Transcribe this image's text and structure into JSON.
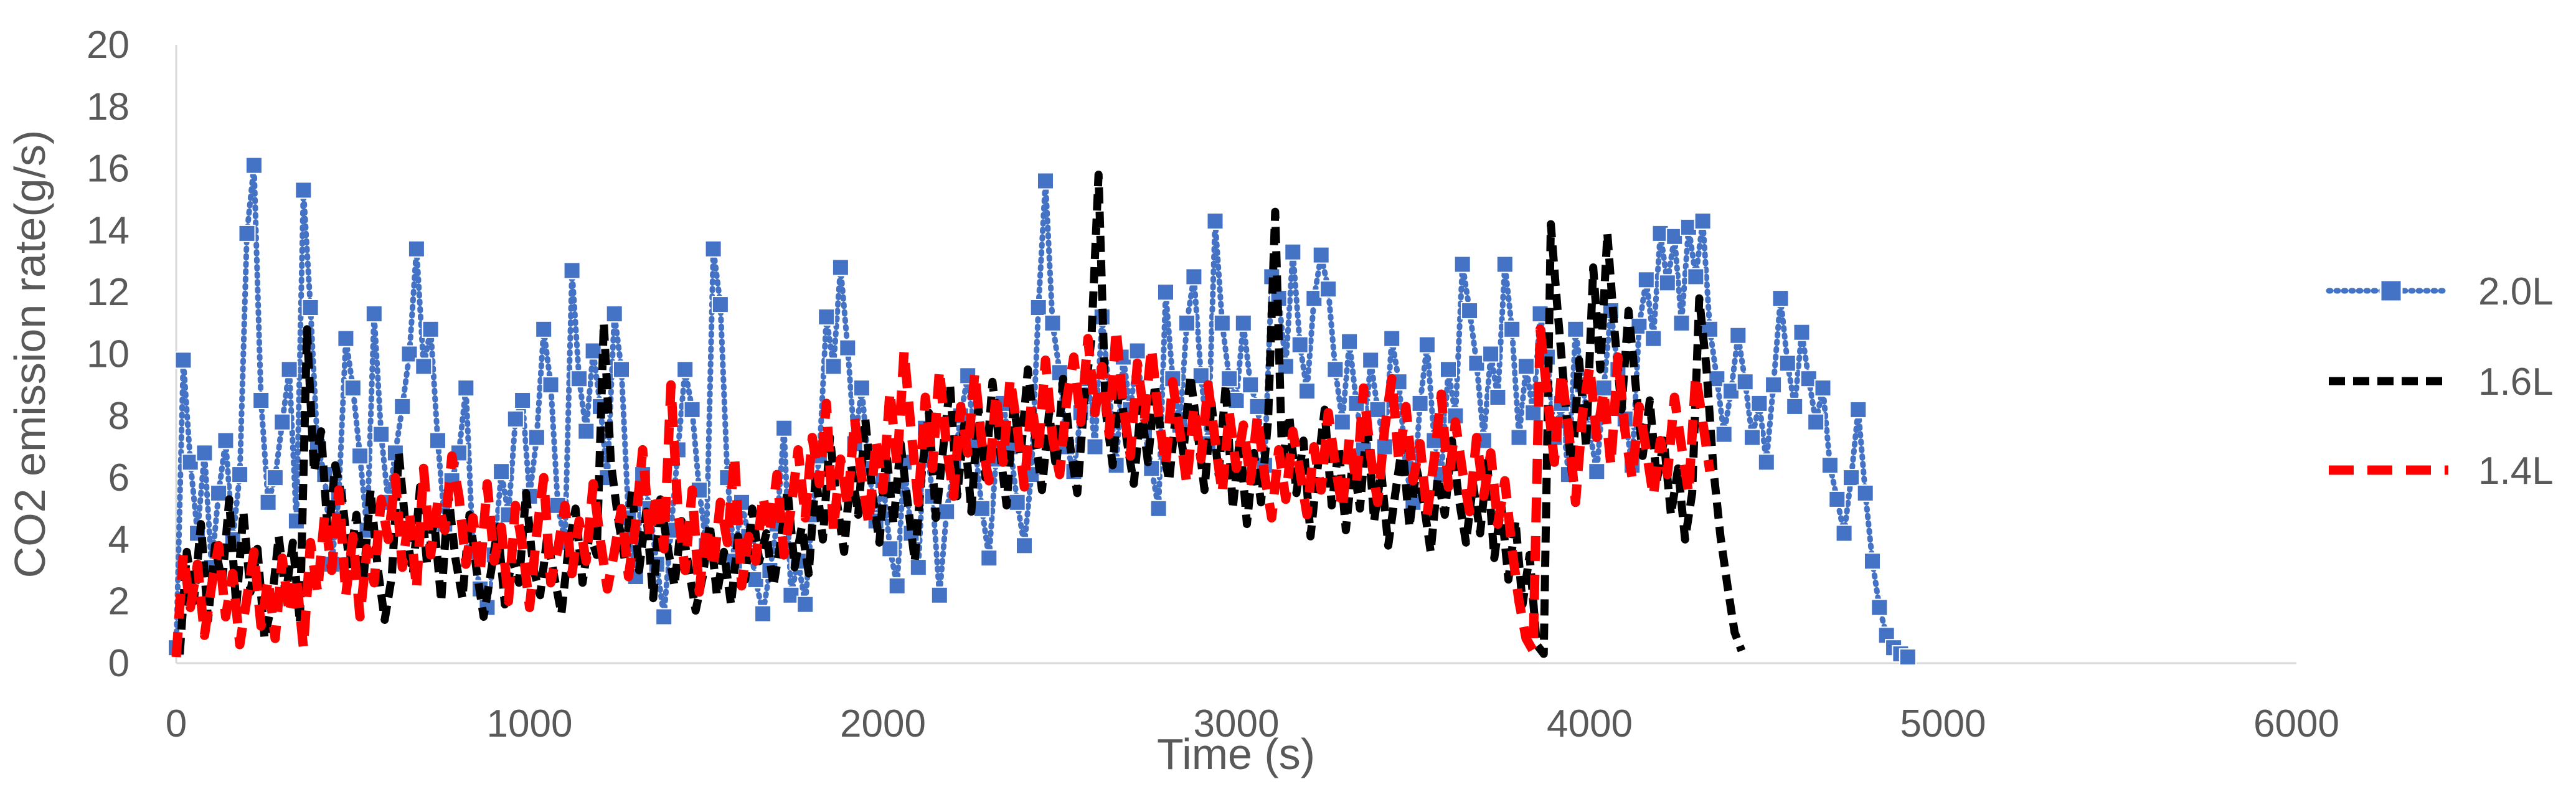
{
  "chart_data": {
    "type": "line",
    "title": "",
    "xlabel": "Time (s)",
    "ylabel": "CO2 emission rate(g/s)",
    "xlim": [
      0,
      6000
    ],
    "ylim": [
      0,
      20
    ],
    "x_ticks": [
      "0",
      "1000",
      "2000",
      "3000",
      "4000",
      "5000",
      "6000"
    ],
    "y_ticks": [
      "0",
      "2",
      "4",
      "6",
      "8",
      "10",
      "12",
      "14",
      "16",
      "18",
      "20"
    ],
    "grid": false,
    "legend_position": "right",
    "sample_interval_s": 20,
    "series": [
      {
        "name": "2.0L",
        "color": "#4472C4",
        "style": "dotted-square-marker",
        "x_start": 0,
        "values": [
          0.5,
          9.8,
          6.5,
          4.2,
          6.8,
          3.1,
          5.5,
          7.2,
          4.0,
          6.1,
          13.9,
          16.1,
          8.5,
          5.2,
          6.0,
          7.8,
          9.5,
          4.6,
          15.3,
          11.5,
          7.0,
          6.1,
          3.2,
          5.4,
          10.5,
          8.9,
          6.7,
          4.3,
          11.3,
          7.4,
          5.2,
          6.8,
          8.3,
          10.0,
          13.4,
          9.6,
          10.8,
          7.2,
          4.5,
          5.9,
          6.8,
          8.9,
          3.6,
          2.4,
          1.8,
          3.5,
          6.2,
          4.8,
          7.9,
          8.5,
          5.4,
          7.3,
          10.8,
          9.0,
          5.1,
          3.9,
          12.7,
          9.2,
          7.5,
          10.1,
          8.3,
          6.0,
          11.3,
          9.5,
          4.7,
          2.8,
          6.1,
          5.0,
          3.2,
          1.5,
          4.3,
          6.9,
          9.5,
          8.2,
          5.6,
          3.8,
          13.4,
          11.6,
          6.0,
          3.3,
          5.2,
          4.1,
          2.7,
          1.6,
          3.0,
          4.5,
          7.6,
          2.2,
          3.3,
          1.9,
          4.8,
          6.7,
          11.2,
          9.6,
          12.8,
          10.2,
          7.1,
          8.9,
          6.3,
          4.6,
          5.9,
          3.7,
          2.5,
          6.5,
          4.2,
          3.1,
          7.6,
          5.4,
          2.2,
          4.9,
          6.3,
          8.0,
          9.3,
          7.1,
          5.0,
          3.4,
          6.6,
          8.4,
          7.0,
          5.2,
          3.8,
          6.1,
          11.5,
          15.6,
          11.0,
          9.4,
          7.0,
          6.2,
          8.1,
          9.2,
          7.0,
          11.2,
          8.8,
          6.4,
          9.9,
          8.2,
          10.1,
          7.5,
          6.3,
          5.0,
          12.0,
          9.2,
          7.7,
          11.0,
          12.5,
          9.3,
          7.1,
          14.3,
          11.0,
          9.2,
          8.5,
          11.0,
          9.0,
          8.3,
          6.4,
          12.5,
          11.8,
          9.6,
          13.3,
          10.3,
          8.8,
          11.8,
          13.2,
          12.1,
          9.5,
          7.8,
          10.4,
          8.4,
          6.9,
          9.8,
          8.2,
          7.0,
          10.5,
          9.1,
          6.3,
          5.2,
          8.4,
          10.3,
          7.2,
          6.1,
          9.5,
          8.0,
          12.9,
          11.4,
          9.7,
          7.2,
          10.0,
          8.6,
          12.9,
          10.8,
          7.3,
          9.6,
          8.1,
          11.3,
          9.9,
          7.3,
          8.4,
          6.1,
          10.8,
          9.0,
          7.5,
          6.2,
          8.9,
          11.4,
          9.5,
          7.9,
          6.4,
          10.9,
          12.4,
          10.5,
          13.9,
          12.3,
          13.8,
          11.0,
          14.1,
          12.5,
          14.3,
          10.8,
          9.2,
          7.4,
          8.8,
          10.6,
          9.1,
          7.3,
          8.4,
          6.5,
          9.0,
          11.8,
          9.7,
          8.3,
          10.7,
          9.2,
          7.8,
          8.9,
          6.4,
          5.3,
          4.2,
          6.0,
          8.2,
          5.5,
          3.3,
          1.8,
          0.9,
          0.5,
          0.3,
          0.2
        ]
      },
      {
        "name": "1.6L",
        "color": "#000000",
        "style": "dashed",
        "x_start": 10,
        "values": [
          0.3,
          3.6,
          2.0,
          4.5,
          1.4,
          3.8,
          2.6,
          5.3,
          1.8,
          4.9,
          2.3,
          3.7,
          0.8,
          1.9,
          4.1,
          2.2,
          3.9,
          1.3,
          10.8,
          6.2,
          7.5,
          4.0,
          6.4,
          5.3,
          3.2,
          4.8,
          2.7,
          5.6,
          3.1,
          1.4,
          2.8,
          6.8,
          4.3,
          2.9,
          5.7,
          3.2,
          4.6,
          2.0,
          5.5,
          3.4,
          2.1,
          4.8,
          3.0,
          1.5,
          2.9,
          4.4,
          1.9,
          3.4,
          2.6,
          5.5,
          3.1,
          2.2,
          4.1,
          2.8,
          1.6,
          3.7,
          5.0,
          2.6,
          4.2,
          3.5,
          11.0,
          6.5,
          4.7,
          3.3,
          5.6,
          3.0,
          4.9,
          2.1,
          5.3,
          3.8,
          2.5,
          4.6,
          3.1,
          1.7,
          2.8,
          4.5,
          2.2,
          3.6,
          1.9,
          4.1,
          2.7,
          5.0,
          3.3,
          4.2,
          2.5,
          3.9,
          5.6,
          3.1,
          4.4,
          2.9,
          6.1,
          4.0,
          7.3,
          5.2,
          3.6,
          6.4,
          4.8,
          7.9,
          5.5,
          3.9,
          6.8,
          4.5,
          7.1,
          5.2,
          3.3,
          6.2,
          8.1,
          4.7,
          6.9,
          9.0,
          5.4,
          7.7,
          4.9,
          8.3,
          6.0,
          9.1,
          7.0,
          5.1,
          8.4,
          6.7,
          9.5,
          7.4,
          5.6,
          8.1,
          6.3,
          9.2,
          7.0,
          5.5,
          8.5,
          10.5,
          15.8,
          8.2,
          6.4,
          9.1,
          7.2,
          5.8,
          8.3,
          6.5,
          9.0,
          7.1,
          5.9,
          8.2,
          6.8,
          9.3,
          7.5,
          5.6,
          8.4,
          6.1,
          9.0,
          5.0,
          7.3,
          4.5,
          6.8,
          5.2,
          7.9,
          14.6,
          6.4,
          8.0,
          5.5,
          7.2,
          4.1,
          6.3,
          8.2,
          5.1,
          7.0,
          4.3,
          6.6,
          5.0,
          7.8,
          4.6,
          6.2,
          3.8,
          5.5,
          7.1,
          4.4,
          6.3,
          5.2,
          3.6,
          6.0,
          4.8,
          7.2,
          5.3,
          3.9,
          5.8,
          4.2,
          6.5,
          3.4,
          5.1,
          2.7,
          4.6,
          1.9,
          3.5,
          0.6,
          0.3,
          14.2,
          11.3,
          8.6,
          6.1,
          9.8,
          7.0,
          12.8,
          9.5,
          13.9,
          10.8,
          8.2,
          11.4,
          9.0,
          6.7,
          8.5,
          5.9,
          7.2,
          4.8,
          6.3,
          4.0,
          5.5,
          11.8,
          9.6,
          6.3,
          4.1,
          2.5,
          1.0,
          0.4
        ]
      },
      {
        "name": "1.4L",
        "color": "#FF0000",
        "style": "long-dash",
        "x_start": 0,
        "values": [
          0.2,
          3.5,
          1.8,
          3.2,
          0.9,
          2.5,
          3.8,
          1.5,
          2.9,
          0.6,
          2.1,
          3.6,
          1.2,
          2.7,
          0.8,
          3.4,
          1.6,
          2.8,
          0.5,
          3.9,
          2.3,
          4.8,
          3.0,
          5.6,
          2.2,
          4.1,
          1.5,
          3.7,
          2.6,
          5.3,
          4.0,
          6.0,
          3.1,
          4.9,
          2.4,
          6.3,
          3.5,
          5.2,
          4.3,
          6.7,
          5.4,
          3.2,
          4.7,
          2.9,
          5.8,
          3.3,
          4.4,
          2.0,
          5.1,
          3.8,
          1.8,
          4.2,
          6.0,
          2.6,
          3.7,
          5.1,
          2.9,
          4.6,
          3.3,
          5.8,
          4.0,
          2.4,
          3.6,
          5.0,
          2.8,
          4.5,
          6.9,
          4.1,
          5.5,
          3.7,
          9.0,
          4.9,
          3.0,
          5.6,
          2.3,
          4.4,
          3.1,
          5.2,
          3.9,
          6.7,
          2.5,
          4.1,
          3.3,
          5.4,
          4.2,
          6.1,
          3.5,
          5.0,
          6.9,
          4.7,
          7.3,
          5.8,
          8.4,
          4.3,
          6.6,
          5.1,
          7.9,
          6.0,
          4.5,
          7.2,
          5.6,
          8.8,
          6.4,
          10.1,
          7.5,
          5.2,
          8.6,
          6.3,
          9.5,
          7.0,
          5.4,
          8.3,
          6.8,
          9.4,
          7.1,
          5.9,
          8.7,
          6.5,
          9.2,
          7.6,
          5.7,
          8.4,
          6.9,
          9.8,
          7.3,
          6.1,
          8.5,
          9.9,
          7.8,
          10.5,
          8.1,
          9.6,
          7.4,
          10.8,
          8.3,
          6.7,
          9.7,
          7.9,
          10.2,
          8.0,
          6.4,
          9.1,
          7.5,
          5.8,
          8.3,
          6.6,
          9.0,
          7.2,
          5.5,
          8.1,
          6.3,
          7.7,
          5.9,
          8.0,
          6.1,
          4.7,
          6.9,
          5.3,
          7.5,
          6.2,
          4.8,
          7.0,
          5.6,
          8.1,
          6.4,
          5.0,
          7.3,
          5.8,
          8.9,
          6.7,
          5.2,
          7.6,
          9.2,
          6.5,
          8.3,
          5.9,
          7.1,
          4.8,
          6.6,
          8.7,
          5.7,
          7.8,
          6.2,
          4.9,
          7.3,
          5.4,
          6.8,
          4.5,
          5.9,
          3.7,
          2.0,
          0.8,
          0.4,
          10.8,
          8.7,
          6.5,
          9.4,
          7.6,
          5.2,
          8.1,
          9.6,
          7.3,
          8.8,
          6.4,
          9.9,
          7.5,
          6.0,
          8.3,
          6.9,
          5.4,
          7.2,
          6.1,
          8.6,
          7.0,
          5.5,
          9.3,
          7.8,
          6.2
        ]
      }
    ]
  }
}
